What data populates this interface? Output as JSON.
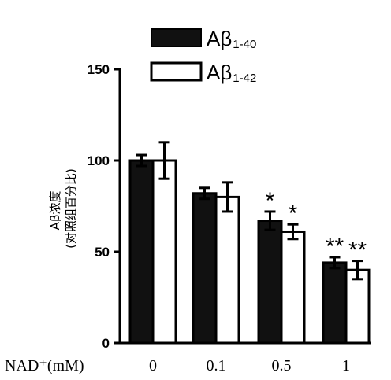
{
  "chart_data": {
    "type": "bar",
    "xlabel": "NAD⁺(mM)",
    "ylabel_lines": [
      "Aβ浓度",
      "(对照组百分比)"
    ],
    "categories": [
      "0",
      "0.1",
      "0.5",
      "1"
    ],
    "ylim": [
      0,
      150
    ],
    "yticks": [
      "0",
      "50",
      "100",
      "150"
    ],
    "grid": false,
    "legend_position": "top-center",
    "series": [
      {
        "name": "Aβ1-40",
        "name_main": "Aβ",
        "name_sub": "1-40",
        "color": "#111111",
        "values": [
          100,
          82,
          67,
          44
        ],
        "errors": [
          3,
          3,
          5,
          3
        ],
        "significance": [
          "",
          "",
          "*",
          "**"
        ]
      },
      {
        "name": "Aβ1-42",
        "name_main": "Aβ",
        "name_sub": "1-42",
        "color": "#ffffff",
        "values": [
          100,
          80,
          61,
          40
        ],
        "errors": [
          10,
          8,
          4,
          5
        ],
        "significance": [
          "",
          "",
          "*",
          "**"
        ]
      }
    ]
  }
}
